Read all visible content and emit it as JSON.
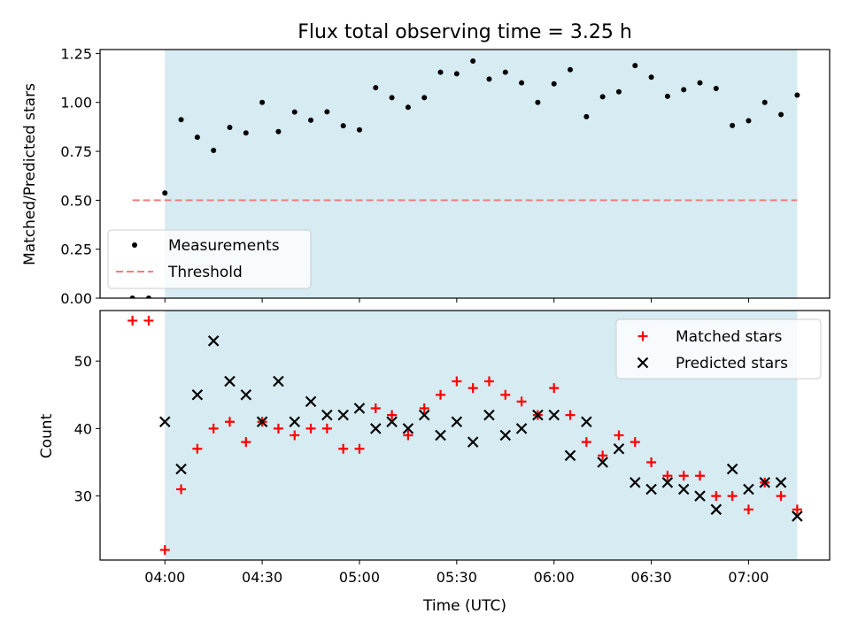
{
  "chart_data": [
    {
      "type": "scatter",
      "title": "Flux total observing time = 3.25 h",
      "xlabel": "",
      "ylabel": "Matched/Predicted stars",
      "ylim": [
        0,
        1.27
      ],
      "yticks": [
        "0.00",
        "0.25",
        "0.50",
        "0.75",
        "1.00",
        "1.25"
      ],
      "ytick_values": [
        0,
        0.25,
        0.5,
        0.75,
        1.0,
        1.25
      ],
      "x": [
        "03:50",
        "03:55",
        "04:00",
        "04:05",
        "04:10",
        "04:15",
        "04:20",
        "04:25",
        "04:30",
        "04:35",
        "04:40",
        "04:45",
        "04:50",
        "04:55",
        "05:00",
        "05:05",
        "05:10",
        "05:15",
        "05:20",
        "05:25",
        "05:30",
        "05:35",
        "05:40",
        "05:45",
        "05:50",
        "05:55",
        "06:00",
        "06:05",
        "06:10",
        "06:15",
        "06:20",
        "06:25",
        "06:30",
        "06:35",
        "06:40",
        "06:45",
        "06:50",
        "06:55",
        "07:00",
        "07:05",
        "07:10",
        "07:15"
      ],
      "series": [
        {
          "name": "Measurements",
          "marker": "dot",
          "color": "#000000",
          "values": [
            0.0,
            0.0,
            0.537,
            0.912,
            0.822,
            0.755,
            0.872,
            0.844,
            1.0,
            0.851,
            0.951,
            0.909,
            0.952,
            0.881,
            0.86,
            1.075,
            1.024,
            0.975,
            1.024,
            1.154,
            1.146,
            1.211,
            1.119,
            1.154,
            1.1,
            1.0,
            1.095,
            1.167,
            0.927,
            1.029,
            1.054,
            1.188,
            1.129,
            1.031,
            1.065,
            1.1,
            1.071,
            0.882,
            0.906,
            1.0,
            0.938,
            1.037
          ]
        },
        {
          "name": "Threshold",
          "style": "dashed",
          "color": "#f08080",
          "value": 0.5,
          "x_range": [
            "03:50",
            "07:15"
          ]
        }
      ],
      "shaded_span": {
        "x_range": [
          "04:00",
          "07:15"
        ],
        "color": "#add8e6"
      },
      "legend": "lower-left",
      "grid": false
    },
    {
      "type": "scatter",
      "xlabel": "Time (UTC)",
      "ylabel": "Count",
      "ylim": [
        20.5,
        57.5
      ],
      "yticks": [
        "30",
        "40",
        "50"
      ],
      "ytick_values": [
        30,
        40,
        50
      ],
      "xlim": [
        "03:40",
        "07:25"
      ],
      "xticks": [
        "04:00",
        "04:30",
        "05:00",
        "05:30",
        "06:00",
        "06:30",
        "07:00"
      ],
      "x": [
        "03:50",
        "03:55",
        "04:00",
        "04:05",
        "04:10",
        "04:15",
        "04:20",
        "04:25",
        "04:30",
        "04:35",
        "04:40",
        "04:45",
        "04:50",
        "04:55",
        "05:00",
        "05:05",
        "05:10",
        "05:15",
        "05:20",
        "05:25",
        "05:30",
        "05:35",
        "05:40",
        "05:45",
        "05:50",
        "05:55",
        "06:00",
        "06:05",
        "06:10",
        "06:15",
        "06:20",
        "06:25",
        "06:30",
        "06:35",
        "06:40",
        "06:45",
        "06:50",
        "06:55",
        "07:00",
        "07:05",
        "07:10",
        "07:15"
      ],
      "series": [
        {
          "name": "Matched stars",
          "marker": "plus",
          "color": "#ff0000",
          "values": [
            56,
            56,
            22,
            31,
            37,
            40,
            41,
            38,
            41,
            40,
            39,
            40,
            40,
            37,
            37,
            43,
            42,
            39,
            43,
            45,
            47,
            46,
            47,
            45,
            44,
            42,
            46,
            42,
            38,
            36,
            39,
            38,
            35,
            33,
            33,
            33,
            30,
            30,
            28,
            32,
            30,
            28
          ]
        },
        {
          "name": "Predicted stars",
          "marker": "x",
          "color": "#000000",
          "values": [
            null,
            null,
            41,
            34,
            45,
            53,
            47,
            45,
            41,
            47,
            41,
            44,
            42,
            42,
            43,
            40,
            41,
            40,
            42,
            39,
            41,
            38,
            42,
            39,
            40,
            42,
            42,
            36,
            41,
            35,
            37,
            32,
            31,
            32,
            31,
            30,
            28,
            34,
            31,
            32,
            32,
            27
          ]
        }
      ],
      "shaded_span": {
        "x_range": [
          "04:00",
          "07:15"
        ],
        "color": "#add8e6"
      },
      "legend": "upper-right",
      "grid": false
    }
  ]
}
